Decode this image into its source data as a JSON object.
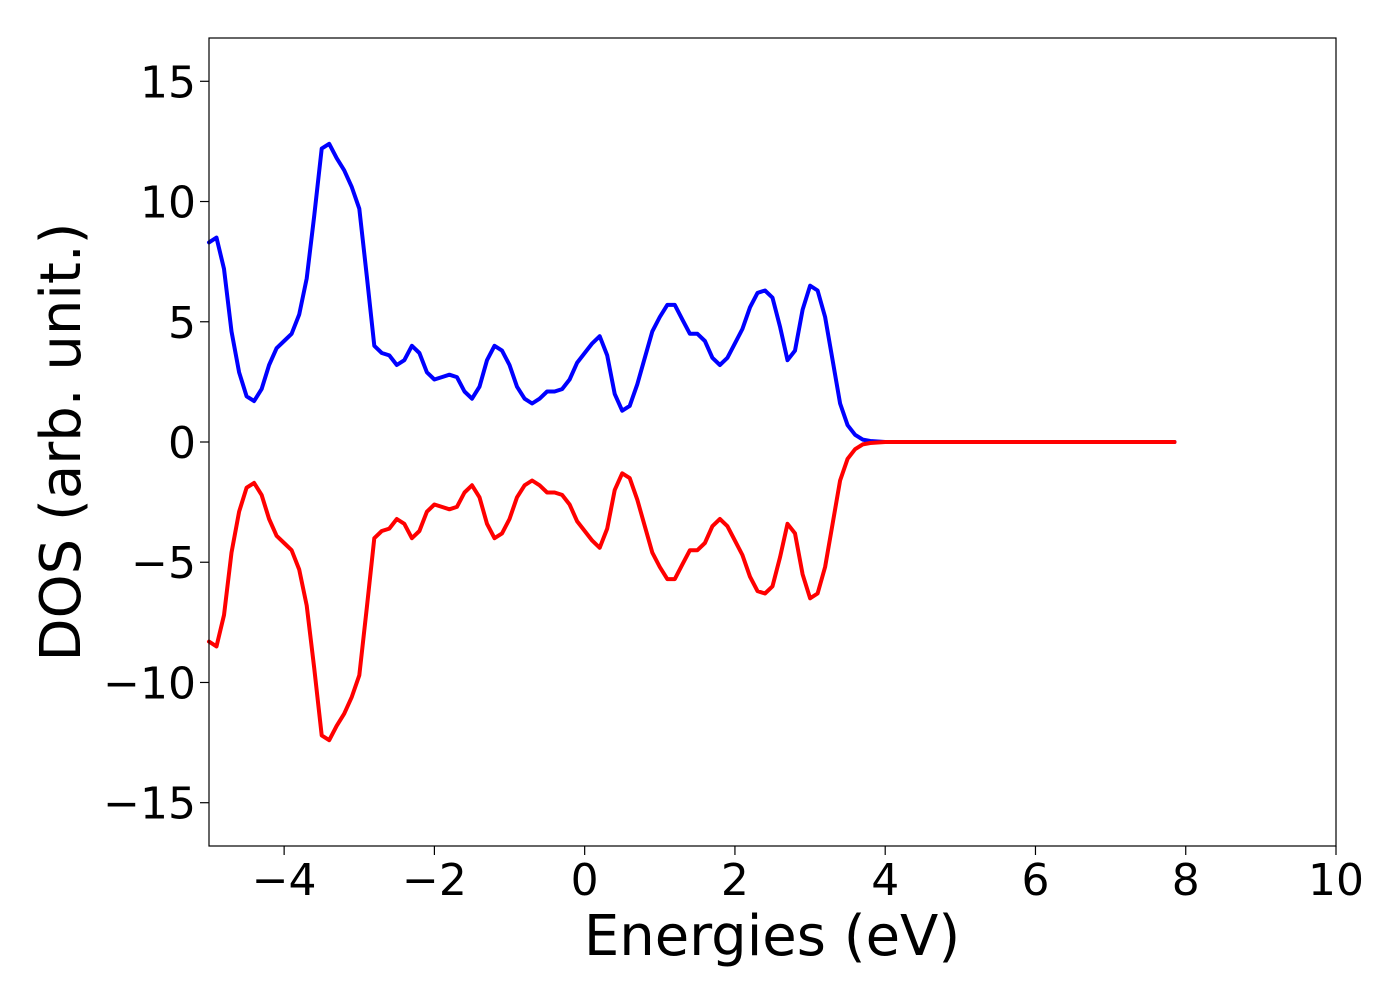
{
  "chart_data": {
    "type": "line",
    "title": "",
    "xlabel": "Energies (eV)",
    "ylabel": "DOS (arb. unit.)",
    "xlim": [
      -5,
      10
    ],
    "ylim": [
      -16.8,
      16.8
    ],
    "x_ticks": [
      -4,
      -2,
      0,
      2,
      4,
      6,
      8,
      10
    ],
    "x_tick_labels": [
      "−4",
      "−2",
      "0",
      "2",
      "4",
      "6",
      "8",
      "10"
    ],
    "y_ticks": [
      15,
      10,
      5,
      0,
      -5,
      -10,
      -15
    ],
    "y_tick_labels": [
      "15",
      "10",
      "5",
      "0",
      "−5",
      "−10",
      "−15"
    ],
    "grid": false,
    "legend": "none",
    "series": [
      {
        "color": "#0000ff",
        "x": [
          -5.0,
          -4.9,
          -4.8,
          -4.7,
          -4.6,
          -4.5,
          -4.4,
          -4.3,
          -4.2,
          -4.1,
          -4.0,
          -3.9,
          -3.8,
          -3.7,
          -3.6,
          -3.5,
          -3.4,
          -3.3,
          -3.2,
          -3.1,
          -3.0,
          -2.9,
          -2.8,
          -2.7,
          -2.6,
          -2.5,
          -2.4,
          -2.3,
          -2.2,
          -2.1,
          -2.0,
          -1.9,
          -1.8,
          -1.7,
          -1.6,
          -1.5,
          -1.4,
          -1.3,
          -1.2,
          -1.1,
          -1.0,
          -0.9,
          -0.8,
          -0.7,
          -0.6,
          -0.5,
          -0.4,
          -0.3,
          -0.2,
          -0.1,
          0.0,
          0.1,
          0.2,
          0.3,
          0.4,
          0.5,
          0.6,
          0.7,
          0.8,
          0.9,
          1.0,
          1.1,
          1.2,
          1.3,
          1.4,
          1.5,
          1.6,
          1.7,
          1.8,
          1.9,
          2.0,
          2.1,
          2.2,
          2.3,
          2.4,
          2.5,
          2.6,
          2.7,
          2.8,
          2.9,
          3.0,
          3.1,
          3.2,
          3.3,
          3.4,
          3.5,
          3.6,
          3.7,
          3.8,
          3.9,
          4.0,
          4.1,
          4.2,
          4.3,
          4.4,
          4.5,
          4.6,
          4.7,
          4.8,
          4.9,
          5.0,
          5.1,
          5.2,
          5.3,
          5.4,
          5.5,
          5.6,
          5.7,
          5.8,
          5.9,
          6.0,
          6.1,
          6.2,
          6.5,
          7.0,
          7.5,
          7.85
        ],
        "y": [
          8.3,
          8.5,
          7.2,
          4.6,
          2.9,
          1.9,
          1.7,
          2.2,
          3.2,
          3.9,
          4.2,
          4.5,
          5.3,
          6.8,
          9.4,
          12.2,
          12.4,
          11.8,
          11.3,
          10.6,
          9.7,
          6.9,
          4.0,
          3.7,
          3.6,
          3.2,
          3.4,
          4.0,
          3.7,
          2.9,
          2.6,
          2.7,
          2.8,
          2.7,
          2.1,
          1.8,
          2.3,
          3.4,
          4.0,
          3.8,
          3.2,
          2.3,
          1.8,
          1.6,
          1.8,
          2.1,
          2.1,
          2.2,
          2.6,
          3.3,
          3.7,
          4.1,
          4.4,
          3.6,
          2.0,
          1.3,
          1.5,
          2.4,
          3.5,
          4.6,
          5.2,
          5.7,
          5.7,
          5.1,
          4.5,
          4.5,
          4.2,
          3.5,
          3.2,
          3.5,
          4.1,
          4.7,
          5.6,
          6.2,
          6.3,
          6.0,
          4.8,
          3.4,
          3.8,
          5.5,
          6.5,
          6.3,
          5.2,
          3.4,
          1.6,
          0.7,
          0.3,
          0.1,
          0.04,
          0.02,
          0.0,
          0.0,
          0.0,
          0.0,
          0.0,
          0.0,
          0.0,
          0.0,
          0.0,
          0.0,
          0.0,
          0.0,
          0.0,
          0.0,
          0.0,
          0.0,
          0.0,
          0.0,
          0.0,
          0.0,
          0.0,
          0.0,
          0.0,
          0.0,
          0.0,
          0.0,
          0.0
        ]
      },
      {
        "color": "#ff0000",
        "x": [
          -5.0,
          -4.9,
          -4.8,
          -4.7,
          -4.6,
          -4.5,
          -4.4,
          -4.3,
          -4.2,
          -4.1,
          -4.0,
          -3.9,
          -3.8,
          -3.7,
          -3.6,
          -3.5,
          -3.4,
          -3.3,
          -3.2,
          -3.1,
          -3.0,
          -2.9,
          -2.8,
          -2.7,
          -2.6,
          -2.5,
          -2.4,
          -2.3,
          -2.2,
          -2.1,
          -2.0,
          -1.9,
          -1.8,
          -1.7,
          -1.6,
          -1.5,
          -1.4,
          -1.3,
          -1.2,
          -1.1,
          -1.0,
          -0.9,
          -0.8,
          -0.7,
          -0.6,
          -0.5,
          -0.4,
          -0.3,
          -0.2,
          -0.1,
          0.0,
          0.1,
          0.2,
          0.3,
          0.4,
          0.5,
          0.6,
          0.7,
          0.8,
          0.9,
          1.0,
          1.1,
          1.2,
          1.3,
          1.4,
          1.5,
          1.6,
          1.7,
          1.8,
          1.9,
          2.0,
          2.1,
          2.2,
          2.3,
          2.4,
          2.5,
          2.6,
          2.7,
          2.8,
          2.9,
          3.0,
          3.1,
          3.2,
          3.3,
          3.4,
          3.5,
          3.6,
          3.7,
          3.8,
          3.9,
          4.0,
          4.1,
          4.2,
          4.3,
          4.4,
          4.5,
          4.6,
          4.7,
          4.8,
          4.9,
          5.0,
          5.1,
          5.2,
          5.3,
          5.4,
          5.5,
          5.6,
          5.7,
          5.8,
          5.9,
          6.0,
          6.1,
          6.2,
          6.5,
          7.0,
          7.5,
          7.85
        ],
        "y": [
          -8.3,
          -8.5,
          -7.2,
          -4.6,
          -2.9,
          -1.9,
          -1.7,
          -2.2,
          -3.2,
          -3.9,
          -4.2,
          -4.5,
          -5.3,
          -6.8,
          -9.4,
          -12.2,
          -12.4,
          -11.8,
          -11.3,
          -10.6,
          -9.7,
          -6.9,
          -4.0,
          -3.7,
          -3.6,
          -3.2,
          -3.4,
          -4.0,
          -3.7,
          -2.9,
          -2.6,
          -2.7,
          -2.8,
          -2.7,
          -2.1,
          -1.8,
          -2.3,
          -3.4,
          -4.0,
          -3.8,
          -3.2,
          -2.3,
          -1.8,
          -1.6,
          -1.8,
          -2.1,
          -2.1,
          -2.2,
          -2.6,
          -3.3,
          -3.7,
          -4.1,
          -4.4,
          -3.6,
          -2.0,
          -1.3,
          -1.5,
          -2.4,
          -3.5,
          -4.6,
          -5.2,
          -5.7,
          -5.7,
          -5.1,
          -4.5,
          -4.5,
          -4.2,
          -3.5,
          -3.2,
          -3.5,
          -4.1,
          -4.7,
          -5.6,
          -6.2,
          -6.3,
          -6.0,
          -4.8,
          -3.4,
          -3.8,
          -5.5,
          -6.5,
          -6.3,
          -5.2,
          -3.4,
          -1.6,
          -0.7,
          -0.3,
          -0.1,
          -0.04,
          -0.02,
          0.0,
          0.0,
          0.0,
          0.0,
          0.0,
          0.0,
          0.0,
          0.0,
          0.0,
          0.0,
          0.0,
          0.0,
          0.0,
          0.0,
          0.0,
          0.0,
          0.0,
          0.0,
          0.0,
          0.0,
          0.0,
          0.0,
          0.0,
          0.0,
          0.0,
          0.0,
          0.0
        ]
      }
    ]
  }
}
